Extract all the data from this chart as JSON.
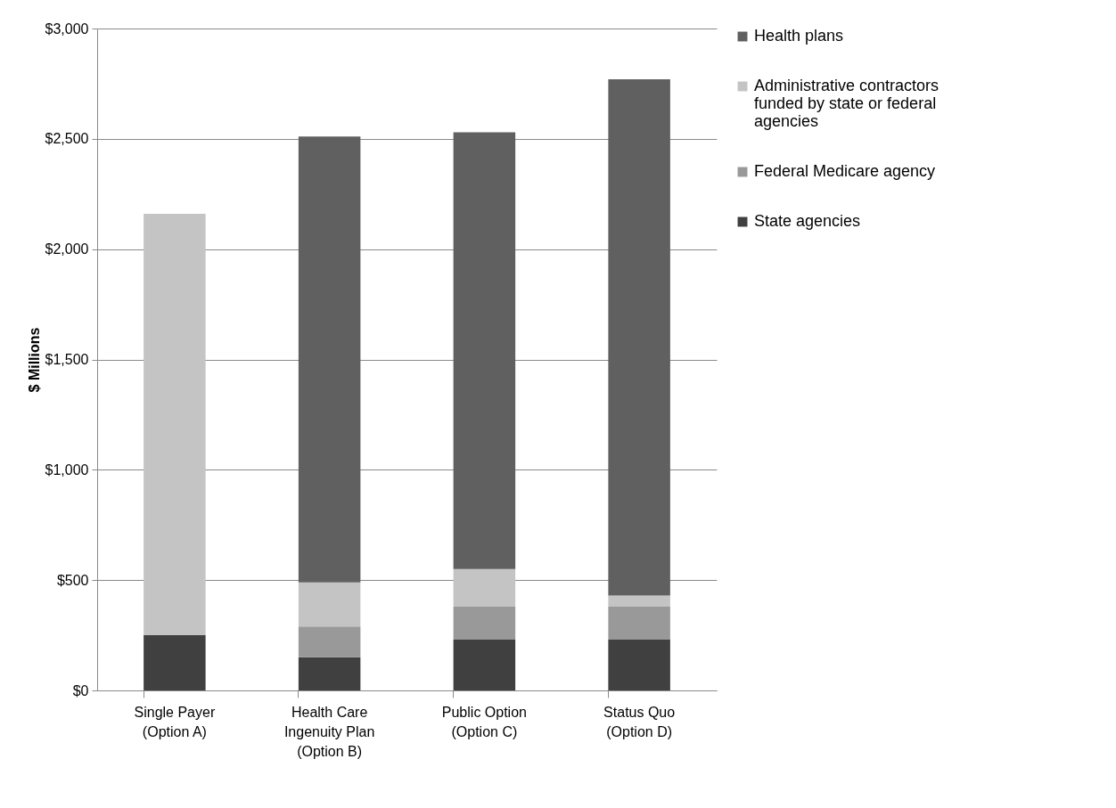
{
  "chart_data": {
    "type": "bar",
    "stacked": true,
    "ylabel": "$ Millions",
    "categories": [
      "Single Payer (Option A)",
      "Health Care Ingenuity Plan (Option B)",
      "Public Option (Option C)",
      "Status Quo (Option D)"
    ],
    "series": [
      {
        "name": "State agencies",
        "color": "#404040",
        "values": [
          250,
          150,
          230,
          230
        ]
      },
      {
        "name": "Federal Medicare agency",
        "color": "#999999",
        "values": [
          null,
          140,
          150,
          150
        ]
      },
      {
        "name": "Administrative contractors funded by state or federal agencies",
        "color": "#c4c4c4",
        "values": [
          1910,
          200,
          170,
          50
        ]
      },
      {
        "name": "Health plans",
        "color": "#606060",
        "values": [
          null,
          2020,
          1980,
          2340
        ]
      }
    ],
    "ylim": [
      0,
      3000
    ],
    "yticks": [
      {
        "value": 0,
        "label": "$0"
      },
      {
        "value": 500,
        "label": "$500"
      },
      {
        "value": 1000,
        "label": "$1,000"
      },
      {
        "value": 1500,
        "label": "$1,500"
      },
      {
        "value": 2000,
        "label": "$2,000"
      },
      {
        "value": 2500,
        "label": "$2,500"
      },
      {
        "value": 3000,
        "label": "$3,000"
      }
    ],
    "grid": "y",
    "legend": "right"
  }
}
